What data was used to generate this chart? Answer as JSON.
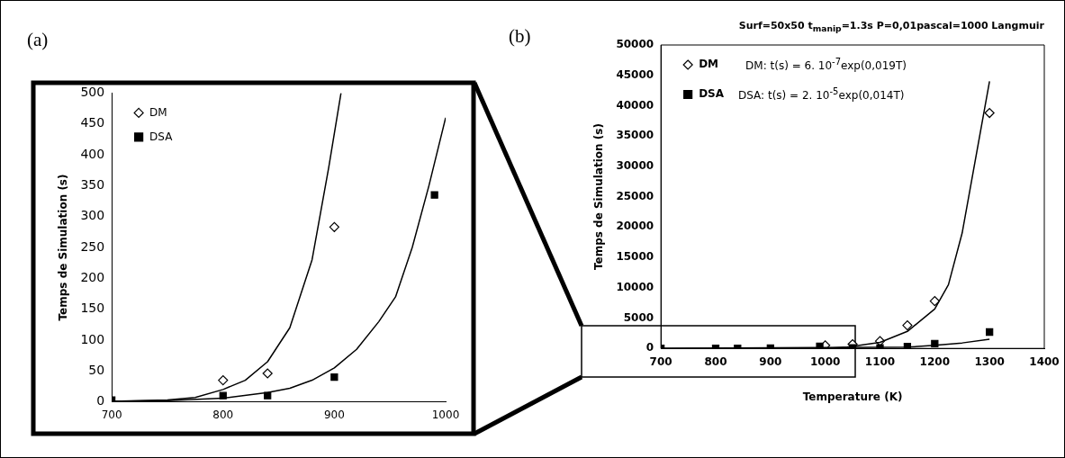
{
  "chart_data": [
    {
      "type": "scatter",
      "annotations": [
        "(a)"
      ],
      "ylabel": "Temps de Simulation (s)",
      "xlim": [
        700,
        1000
      ],
      "xticks": [
        700,
        800,
        900,
        1000
      ],
      "ylim": [
        0,
        500
      ],
      "yticks": [
        0,
        50,
        100,
        150,
        200,
        250,
        300,
        350,
        400,
        450,
        500
      ],
      "grid": false,
      "legend": "top left",
      "series": [
        {
          "name": "DM",
          "color": "#000000",
          "marker": "diamond",
          "x": [
            800,
            840,
            900
          ],
          "values": [
            35,
            46,
            283
          ]
        },
        {
          "name": "DSA",
          "color": "#000000",
          "marker": "square",
          "x": [
            700,
            800,
            840,
            900,
            990
          ],
          "values": [
            3,
            10,
            10,
            40,
            335
          ]
        },
        {
          "type": "line",
          "color": "#000000",
          "marker": "none",
          "x": [
            700,
            750,
            775,
            800,
            820,
            840,
            860,
            880,
            895,
            906
          ],
          "values": [
            1,
            3,
            7,
            20,
            35,
            65,
            120,
            230,
            380,
            500
          ]
        },
        {
          "type": "line",
          "color": "#000000",
          "marker": "none",
          "x": [
            700,
            750,
            800,
            840,
            860,
            880,
            900,
            920,
            940,
            955,
            970,
            985,
            1000
          ],
          "values": [
            1,
            2,
            6,
            15,
            22,
            35,
            55,
            85,
            130,
            170,
            250,
            350,
            460
          ]
        }
      ]
    },
    {
      "type": "scatter",
      "title": "Surf=50x50  t$_{manip}$=1.3s   P=0,01pascal=1000 Langmuir",
      "annotations": [
        "(b)",
        "DM: t(s) = 6. 10$^{-7}$exp(0,019T)",
        "DSA: t(s) = 2. 10$^{-5}$exp(0,014T)"
      ],
      "xlabel": "Temperature (K)",
      "ylabel": "Temps de Simulation (s)",
      "xlim": [
        700,
        1400
      ],
      "xticks": [
        700,
        800,
        900,
        1000,
        1100,
        1200,
        1300,
        1400
      ],
      "ylim": [
        0,
        50000
      ],
      "yticks": [
        0,
        5000,
        10000,
        15000,
        20000,
        25000,
        30000,
        35000,
        40000,
        45000,
        50000
      ],
      "grid": false,
      "legend": "top left",
      "series": [
        {
          "name": "DM",
          "color": "#000000",
          "marker": "diamond",
          "x": [
            1000,
            1050,
            1100,
            1150,
            1200,
            1300
          ],
          "values": [
            500,
            700,
            1200,
            3800,
            7800,
            38800
          ]
        },
        {
          "name": "DSA",
          "color": "#000000",
          "marker": "square",
          "x": [
            700,
            800,
            840,
            900,
            990,
            1050,
            1100,
            1150,
            1200,
            1300
          ],
          "values": [
            3,
            10,
            10,
            40,
            335,
            100,
            100,
            300,
            800,
            2700
          ]
        },
        {
          "type": "line",
          "color": "#000000",
          "marker": "none",
          "x": [
            700,
            1000,
            1040,
            1100,
            1150,
            1200,
            1225,
            1250,
            1270,
            1300
          ],
          "values": [
            0,
            0,
            200,
            1000,
            2800,
            6500,
            10500,
            19000,
            29000,
            44000
          ]
        },
        {
          "type": "line",
          "color": "#000000",
          "marker": "none",
          "x": [
            700,
            1150,
            1200,
            1250,
            1300
          ],
          "values": [
            0,
            200,
            500,
            900,
            1500
          ]
        }
      ]
    }
  ]
}
